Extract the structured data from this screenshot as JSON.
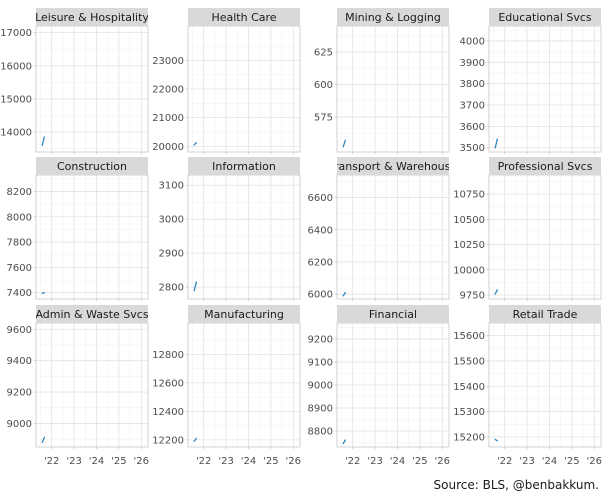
{
  "chart_data": [
    {
      "type": "line",
      "title": "Leisure & Hospitality",
      "yticks": [
        14000,
        15000,
        16000,
        17000
      ],
      "ylim": [
        13400,
        17200
      ],
      "x": [
        2021.58,
        2021.67
      ],
      "values": [
        13600,
        13850
      ],
      "xticks": [],
      "color": "#2E86C1"
    },
    {
      "type": "line",
      "title": "Health Care",
      "yticks": [
        20000,
        21000,
        22000,
        23000
      ],
      "ylim": [
        19800,
        24200
      ],
      "x": [
        2021.58,
        2021.67
      ],
      "values": [
        20050,
        20120
      ],
      "xticks": [],
      "color": "#2E86C1"
    },
    {
      "type": "line",
      "title": "Mining & Logging",
      "yticks": [
        575,
        600,
        625
      ],
      "ylim": [
        548,
        645
      ],
      "x": [
        2021.58,
        2021.67
      ],
      "values": [
        552,
        557
      ],
      "xticks": [],
      "color": "#2E86C1"
    },
    {
      "type": "line",
      "title": "Educational Svcs",
      "yticks": [
        3500,
        3600,
        3700,
        3800,
        3900,
        4000
      ],
      "ylim": [
        3480,
        4070
      ],
      "x": [
        2021.58,
        2021.67
      ],
      "values": [
        3500,
        3540
      ],
      "xticks": [],
      "color": "#2E86C1"
    },
    {
      "type": "line",
      "title": "Construction",
      "yticks": [
        7400,
        7600,
        7800,
        8000,
        8200
      ],
      "ylim": [
        7350,
        8330
      ],
      "x": [
        2021.58,
        2021.67
      ],
      "values": [
        7395,
        7400
      ],
      "xticks": [],
      "color": "#2E86C1"
    },
    {
      "type": "line",
      "title": "Information",
      "yticks": [
        2800,
        2900,
        3000,
        3100
      ],
      "ylim": [
        2765,
        3130
      ],
      "x": [
        2021.58,
        2021.67
      ],
      "values": [
        2790,
        2815
      ],
      "xticks": [],
      "color": "#2E86C1"
    },
    {
      "type": "line",
      "title": "Transport & Warehouse",
      "yticks": [
        6000,
        6200,
        6400,
        6600
      ],
      "ylim": [
        5970,
        6740
      ],
      "x": [
        2021.58,
        2021.67
      ],
      "values": [
        5990,
        6010
      ],
      "xticks": [],
      "color": "#2E86C1"
    },
    {
      "type": "line",
      "title": "Professional Svcs",
      "yticks": [
        9750,
        10000,
        10250,
        10500,
        10750
      ],
      "ylim": [
        9710,
        10940
      ],
      "x": [
        2021.58,
        2021.67
      ],
      "values": [
        9760,
        9800
      ],
      "xticks": [],
      "color": "#2E86C1"
    },
    {
      "type": "line",
      "title": "Admin & Waste Svcs",
      "yticks": [
        9000,
        9200,
        9400,
        9600
      ],
      "ylim": [
        8850,
        9640
      ],
      "x": [
        2021.58,
        2021.67
      ],
      "values": [
        8880,
        8910
      ],
      "xticks": [
        "'22",
        "'23",
        "'24",
        "'25",
        "'26"
      ],
      "color": "#2E86C1"
    },
    {
      "type": "line",
      "title": "Manufacturing",
      "yticks": [
        12200,
        12400,
        12600,
        12800
      ],
      "ylim": [
        12150,
        13020
      ],
      "x": [
        2021.58,
        2021.67
      ],
      "values": [
        12190,
        12210
      ],
      "xticks": [
        "'22",
        "'23",
        "'24",
        "'25",
        "'26"
      ],
      "color": "#2E86C1"
    },
    {
      "type": "line",
      "title": "Financial",
      "yticks": [
        8800,
        8900,
        9000,
        9100,
        9200
      ],
      "ylim": [
        8730,
        9270
      ],
      "x": [
        2021.58,
        2021.67
      ],
      "values": [
        8745,
        8760
      ],
      "xticks": [
        "'22",
        "'23",
        "'24",
        "'25",
        "'26"
      ],
      "color": "#2E86C1"
    },
    {
      "type": "line",
      "title": "Retail Trade",
      "yticks": [
        15200,
        15300,
        15400,
        15500,
        15600
      ],
      "ylim": [
        15160,
        15650
      ],
      "x": [
        2021.58,
        2021.67
      ],
      "values": [
        15190,
        15185
      ],
      "xticks": [
        "'22",
        "'23",
        "'24",
        "'25",
        "'26"
      ],
      "color": "#2E86C1"
    }
  ],
  "x_axis": {
    "tick_values": [
      2022,
      2023,
      2024,
      2025,
      2026
    ],
    "xlim": [
      2021.3,
      2026.3
    ]
  },
  "source": "Source: BLS, @benbakkum."
}
